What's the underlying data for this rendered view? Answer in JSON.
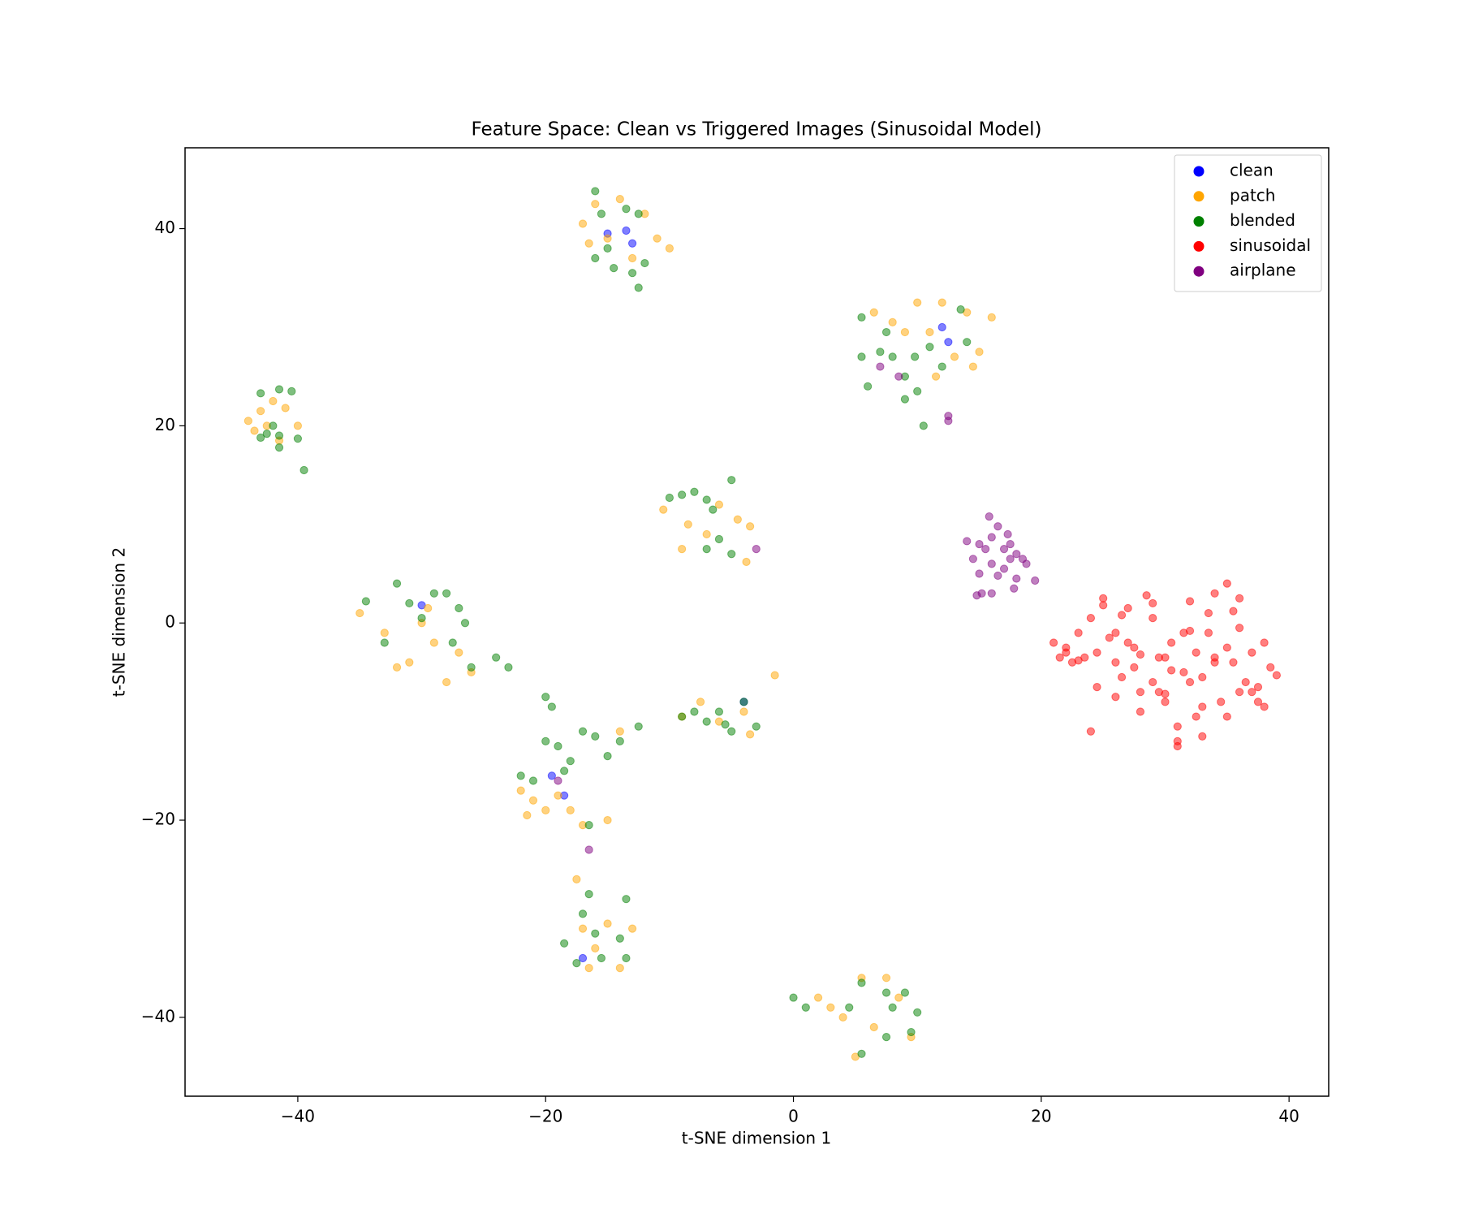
{
  "chart_data": {
    "type": "scatter",
    "title": "Feature Space: Clean vs Triggered Images (Sinusoidal Model)",
    "x_label": "t-SNE dimension 1",
    "y_label": "t-SNE dimension 2",
    "xlim": [
      -49.1,
      43.2
    ],
    "ylim": [
      -48.0,
      48.2
    ],
    "xticks": [
      {
        "value": -40,
        "label": "−40"
      },
      {
        "value": -20,
        "label": "−20"
      },
      0,
      20,
      40
    ],
    "yticks": [
      {
        "value": -40,
        "label": "−40"
      },
      {
        "value": -20,
        "label": "−20"
      },
      0,
      20,
      40
    ],
    "legend": "upper right",
    "alpha": 0.5,
    "grid": false,
    "series": [
      {
        "name": "clean",
        "color": "#0000ff",
        "x": [
          -13.5,
          -15,
          -18.5,
          -4,
          12,
          -19.5,
          -17,
          -13,
          12.5,
          -30
        ],
        "values": [
          39.8,
          39.5,
          -17.5,
          -8,
          30,
          -15.5,
          -34,
          38.5,
          28.5,
          1.8
        ]
      },
      {
        "name": "patch",
        "color": "#ffa500",
        "x": [
          -44,
          -43,
          -42.5,
          -42,
          -41,
          -43.5,
          -40,
          -41.5,
          -17,
          -16,
          -15,
          -14,
          -13,
          -12,
          -11,
          -16.5,
          -10,
          6.5,
          8,
          10,
          11,
          12,
          13,
          14,
          15,
          16,
          11.5,
          9,
          14.5,
          -10.5,
          -8.5,
          -7,
          -6,
          -4.5,
          -3.5,
          -3.8,
          -9,
          -35,
          -33,
          -31,
          -30,
          -29,
          -28,
          -27,
          -26,
          -32,
          -29.5,
          -9,
          -7.5,
          -6,
          -4,
          -3.5,
          -1.5,
          -22,
          -21,
          -20,
          -19,
          -18,
          -17,
          -21.5,
          -15,
          -14,
          -17.5,
          -17,
          -16,
          -15,
          -14,
          -13,
          -16.5,
          2,
          3,
          4,
          5.5,
          6.5,
          7.5,
          8.5,
          9.5,
          5
        ],
        "values": [
          20.5,
          21.5,
          20,
          22.5,
          21.8,
          19.5,
          20,
          18.5,
          40.5,
          42.5,
          39,
          43,
          37,
          41.5,
          39,
          38.5,
          38,
          31.5,
          30.5,
          32.5,
          29.5,
          32.5,
          27,
          31.5,
          27.5,
          31,
          25,
          29.5,
          26,
          11.5,
          10,
          9,
          12,
          10.5,
          9.8,
          6.2,
          7.5,
          1,
          -1,
          -4,
          0,
          -2,
          -6,
          -3,
          -5,
          -4.5,
          1.5,
          -9.5,
          -8,
          -10,
          -9,
          -11.3,
          -5.3,
          -17,
          -18,
          -19,
          -17.5,
          -19,
          -20.5,
          -19.5,
          -20,
          -11,
          -26,
          -31,
          -33,
          -30.5,
          -35,
          -31,
          -35,
          -38,
          -39,
          -40,
          -36,
          -41,
          -36,
          -38,
          -42,
          -44
        ]
      },
      {
        "name": "blended",
        "color": "#008000",
        "x": [
          -43,
          -41.5,
          -40.5,
          -42,
          -41.5,
          -43,
          -41.5,
          -40,
          -39.5,
          -42.5,
          -16,
          -15.5,
          -13.5,
          -12.5,
          -16,
          -14.5,
          -12.5,
          -13,
          -12,
          -15,
          5.5,
          5.5,
          7.5,
          8,
          9,
          10,
          9,
          10.5,
          12,
          13.5,
          14,
          6,
          7,
          11,
          9.8,
          -10,
          -8,
          -7,
          -5,
          -6,
          -7,
          -5,
          -9,
          -6.5,
          -32,
          -31,
          -30,
          -29,
          -28,
          -27,
          -26.5,
          -27.5,
          -33,
          -26,
          -24,
          -23,
          -34.5,
          -9,
          -8,
          -7,
          -6,
          -5,
          -4,
          -3,
          -5.5,
          -20,
          -19.5,
          -20,
          -19,
          -18,
          -17,
          -16,
          -15,
          -14,
          -12.5,
          -22,
          -21,
          -18.5,
          -16.5,
          -17,
          -16.5,
          -18.5,
          -17.5,
          -16,
          -14,
          -13.5,
          -13.5,
          -15.5,
          0,
          1,
          4.5,
          5.5,
          7.5,
          8,
          9,
          10,
          9.5,
          7.5,
          5.5
        ],
        "values": [
          23.3,
          23.7,
          23.5,
          20,
          19,
          18.8,
          17.8,
          18.7,
          15.5,
          19.2,
          43.8,
          41.5,
          42,
          41.5,
          37,
          36,
          34,
          35.5,
          36.5,
          38,
          31,
          27,
          29.5,
          27,
          25,
          23.5,
          22.7,
          20,
          26,
          31.8,
          28.5,
          24,
          27.5,
          28,
          27,
          12.7,
          13.3,
          12.5,
          14.5,
          8.5,
          7.5,
          7,
          13,
          11.5,
          4,
          2,
          0.5,
          3,
          3,
          1.5,
          0,
          -2,
          -2,
          -4.5,
          -3.5,
          -4.5,
          2.2,
          -9.5,
          -9,
          -10,
          -9,
          -11,
          -8,
          -10.5,
          -10.3,
          -7.5,
          -8.5,
          -12,
          -12.5,
          -14,
          -11,
          -11.5,
          -13.5,
          -12,
          -10.5,
          -15.5,
          -16,
          -15,
          -20.5,
          -29.5,
          -27.5,
          -32.5,
          -34.5,
          -31.5,
          -32,
          -28,
          -34,
          -34,
          -38,
          -39,
          -39,
          -36.5,
          -37.5,
          -39,
          -37.5,
          -39.5,
          -41.5,
          -42,
          -43.7
        ]
      },
      {
        "name": "sinusoidal",
        "color": "#ff0000",
        "x": [
          21,
          21.5,
          22,
          22.5,
          23,
          23.5,
          24,
          24.5,
          25,
          25.5,
          26,
          26.5,
          27,
          27.5,
          28,
          28.5,
          29,
          29.5,
          30,
          30.5,
          31,
          31.5,
          32,
          32.5,
          33,
          33.5,
          34,
          34.5,
          35,
          35.5,
          36,
          36.5,
          37,
          37.5,
          38,
          38.5,
          39,
          22,
          23,
          24.5,
          25,
          26,
          26.5,
          27.5,
          28,
          29,
          29.5,
          30,
          31,
          31.5,
          32,
          33,
          33.5,
          34,
          35,
          35.5,
          36,
          37,
          37.5,
          38,
          24,
          26,
          28,
          30,
          32,
          34,
          36,
          27,
          29,
          31,
          33,
          35,
          30.5,
          32.5
        ],
        "values": [
          -2,
          -3.5,
          -3,
          -4,
          -1,
          -3.5,
          0.5,
          -6.5,
          2.5,
          -1.5,
          -4,
          -5.5,
          1.5,
          -2.5,
          -7,
          2.8,
          -6,
          -3.5,
          -8,
          -2,
          -10.5,
          -1,
          -6,
          -3,
          -11.5,
          1,
          -3.5,
          -8,
          4,
          -4,
          -0.5,
          -6,
          -7,
          -8,
          -2,
          -4.5,
          -5.3,
          -2.5,
          -3.8,
          -3,
          1.8,
          -7.5,
          0.8,
          -4.5,
          -9,
          2,
          -7,
          -3.5,
          -12,
          -5,
          2.2,
          -8.5,
          -1,
          -4,
          -9.5,
          1.2,
          -7,
          -3,
          -6.5,
          -8.5,
          -11,
          -1,
          -3.2,
          -7.2,
          -0.8,
          3,
          2.5,
          -2,
          0.5,
          -12.5,
          -5.5,
          -2.5,
          -4.8,
          -9.5
        ]
      },
      {
        "name": "airplane",
        "color": "#800080",
        "x": [
          14,
          14.5,
          15,
          15,
          15.5,
          16,
          16,
          16.5,
          16.5,
          17,
          17,
          17.5,
          17.5,
          18,
          18,
          18.5,
          18.8,
          19.5,
          15.2,
          16,
          14.8,
          17.8,
          15.8,
          17.3,
          7,
          8.5,
          12.5,
          12.5,
          -3,
          -16.5,
          -19
        ],
        "values": [
          8.3,
          6.5,
          5,
          8,
          7.5,
          6,
          8.7,
          9.8,
          4.8,
          7.5,
          5.5,
          6.5,
          8,
          4.5,
          7,
          6.5,
          6,
          4.3,
          3,
          3,
          2.8,
          3.5,
          10.8,
          9,
          26,
          25,
          21,
          20.5,
          7.5,
          -23,
          -16
        ]
      }
    ]
  }
}
